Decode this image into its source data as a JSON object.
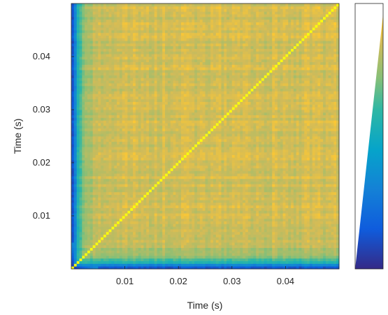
{
  "chart_data": {
    "type": "heatmap",
    "title": "",
    "xlabel": "Time (s)",
    "ylabel": "Time (s)",
    "xlim": [
      0,
      0.05
    ],
    "ylim": [
      0,
      0.05
    ],
    "x_ticks": [
      0.01,
      0.02,
      0.03,
      0.04
    ],
    "y_ticks": [
      0.01,
      0.02,
      0.03,
      0.04
    ],
    "x_tick_labels": [
      "0.01",
      "0.02",
      "0.03",
      "0.04"
    ],
    "y_tick_labels": [
      "0.01",
      "0.02",
      "0.03",
      "0.04"
    ],
    "grid_size": 100,
    "colormap": "parula",
    "matrix_symmetric": true,
    "diagonal_value": 1.0,
    "approx_values": {
      "bulk_off_diagonal": 0.85,
      "near_time_zero_edge": 0.3,
      "lowest_near_origin": 0.05
    },
    "colorbar": {
      "visible": true,
      "orientation": "vertical",
      "tick_labels": []
    }
  }
}
